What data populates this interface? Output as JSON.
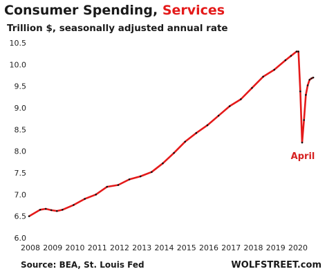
{
  "header": {
    "title_main": "Consumer Spending,",
    "title_highlight": "Services",
    "subtitle": "Trillion $, seasonally adjusted annual rate"
  },
  "footer": {
    "source": "Source: BEA, St. Louis Fed",
    "brand": "WOLFSTREET.com"
  },
  "colors": {
    "line": "#e41a1a",
    "highlight": "#e41a1a",
    "marker": "#111111"
  },
  "chart_data": {
    "type": "line",
    "title": "Consumer Spending, Services",
    "subtitle": "Trillion $, seasonally adjusted annual rate",
    "xlabel": "",
    "ylabel": "",
    "xlim": [
      2008,
      2020.9
    ],
    "ylim": [
      6.0,
      10.5
    ],
    "x_ticks": [
      2008,
      2009,
      2010,
      2011,
      2012,
      2013,
      2014,
      2015,
      2016,
      2017,
      2018,
      2019,
      2020
    ],
    "y_ticks": [
      6.0,
      6.5,
      7.0,
      7.5,
      8.0,
      8.5,
      9.0,
      9.5,
      10.0,
      10.5
    ],
    "grid": false,
    "legend": "none",
    "annotations": [
      {
        "text": "April",
        "x": 2020.25,
        "y": 8.2
      }
    ],
    "series": [
      {
        "name": "",
        "x": [
          2008.0,
          2008.5,
          2008.75,
          2009.0,
          2009.25,
          2009.5,
          2010.0,
          2010.5,
          2011.0,
          2011.5,
          2012.0,
          2012.5,
          2013.0,
          2013.5,
          2014.0,
          2014.5,
          2015.0,
          2015.5,
          2016.0,
          2016.5,
          2017.0,
          2017.5,
          2018.0,
          2018.5,
          2019.0,
          2019.5,
          2019.75,
          2020.0,
          2020.083,
          2020.167,
          2020.25,
          2020.333,
          2020.417,
          2020.5,
          2020.583,
          2020.667,
          2020.75
        ],
        "y": [
          6.5,
          6.65,
          6.67,
          6.64,
          6.62,
          6.65,
          6.76,
          6.9,
          7.0,
          7.18,
          7.22,
          7.35,
          7.42,
          7.52,
          7.72,
          7.96,
          8.22,
          8.42,
          8.6,
          8.82,
          9.04,
          9.2,
          9.46,
          9.72,
          9.88,
          10.1,
          10.2,
          10.3,
          10.3,
          9.38,
          8.2,
          8.72,
          9.3,
          9.52,
          9.65,
          9.68,
          9.7
        ]
      }
    ]
  }
}
